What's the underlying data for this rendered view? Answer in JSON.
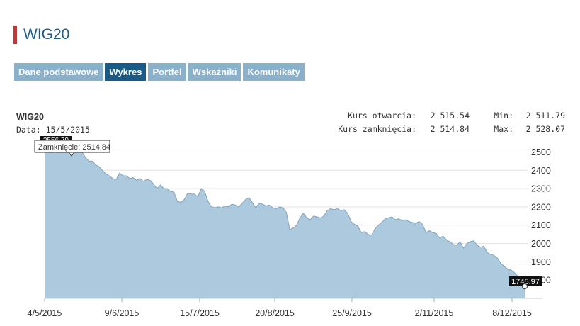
{
  "page": {
    "title": "WIG20"
  },
  "tabs": [
    {
      "label": "Dane podstawowe",
      "active": false
    },
    {
      "label": "Wykres",
      "active": true
    },
    {
      "label": "Portfel",
      "active": false
    },
    {
      "label": "Wskaźniki",
      "active": false
    },
    {
      "label": "Komunikaty",
      "active": false
    }
  ],
  "info": {
    "name": "WIG20",
    "date_label": "Data:",
    "date_value": "15/5/2015",
    "open_label": "Kurs otwarcia:",
    "open_value": "2 515.54",
    "close_label": "Kurs zamknięcia:",
    "close_value": "2 514.84",
    "min_label": "Min:",
    "min_value": "2 511.79",
    "max_label": "Max:",
    "max_value": "2 528.07"
  },
  "colors": {
    "accent": "#d32f2f",
    "tab": "#8ab0cc",
    "tab_active": "#1c5a86",
    "area": "#a9c6dc",
    "line": "#7fa3bf"
  },
  "chart_data": {
    "type": "area",
    "title": "",
    "xlabel": "",
    "ylabel": "",
    "x_ticks": [
      "4/5/2015",
      "9/6/2015",
      "15/7/2015",
      "20/8/2015",
      "25/9/2015",
      "2/11/2015",
      "8/12/2015"
    ],
    "y_ticks": [
      1800,
      1900,
      2000,
      2100,
      2200,
      2300,
      2400,
      2500
    ],
    "ylim": [
      1700,
      2560
    ],
    "grid": true,
    "y_axis_side": "right",
    "tooltip": "Zamknięcie: 2514.84",
    "top_label_partial": "2556.79",
    "last_value_label": "1745.97",
    "series": [
      {
        "values": [
          2520,
          2555,
          2540,
          2520,
          2530,
          2515,
          2525,
          2535,
          2540,
          2525,
          2520,
          2500,
          2470,
          2450,
          2450,
          2430,
          2420,
          2400,
          2380,
          2370,
          2355,
          2350,
          2385,
          2370,
          2370,
          2355,
          2360,
          2345,
          2355,
          2340,
          2350,
          2345,
          2325,
          2300,
          2320,
          2300,
          2300,
          2285,
          2280,
          2230,
          2225,
          2240,
          2275,
          2270,
          2270,
          2255,
          2300,
          2285,
          2230,
          2200,
          2195,
          2200,
          2195,
          2205,
          2200,
          2215,
          2210,
          2200,
          2220,
          2240,
          2250,
          2225,
          2195,
          2220,
          2215,
          2205,
          2210,
          2195,
          2190,
          2200,
          2195,
          2170,
          2075,
          2085,
          2100,
          2140,
          2165,
          2140,
          2130,
          2150,
          2145,
          2140,
          2150,
          2180,
          2190,
          2185,
          2190,
          2180,
          2185,
          2165,
          2120,
          2105,
          2095,
          2060,
          2065,
          2050,
          2045,
          2080,
          2100,
          2115,
          2135,
          2140,
          2145,
          2130,
          2135,
          2125,
          2130,
          2120,
          2115,
          2110,
          2120,
          2105,
          2060,
          2070,
          2060,
          2055,
          2030,
          2040,
          2020,
          2010,
          1995,
          1990,
          2010,
          1975,
          2000,
          2010,
          2015,
          1990,
          1980,
          1985,
          1950,
          1940,
          1935,
          1920,
          1890,
          1875,
          1860,
          1855,
          1840,
          1820,
          1780,
          1746
        ]
      }
    ]
  }
}
